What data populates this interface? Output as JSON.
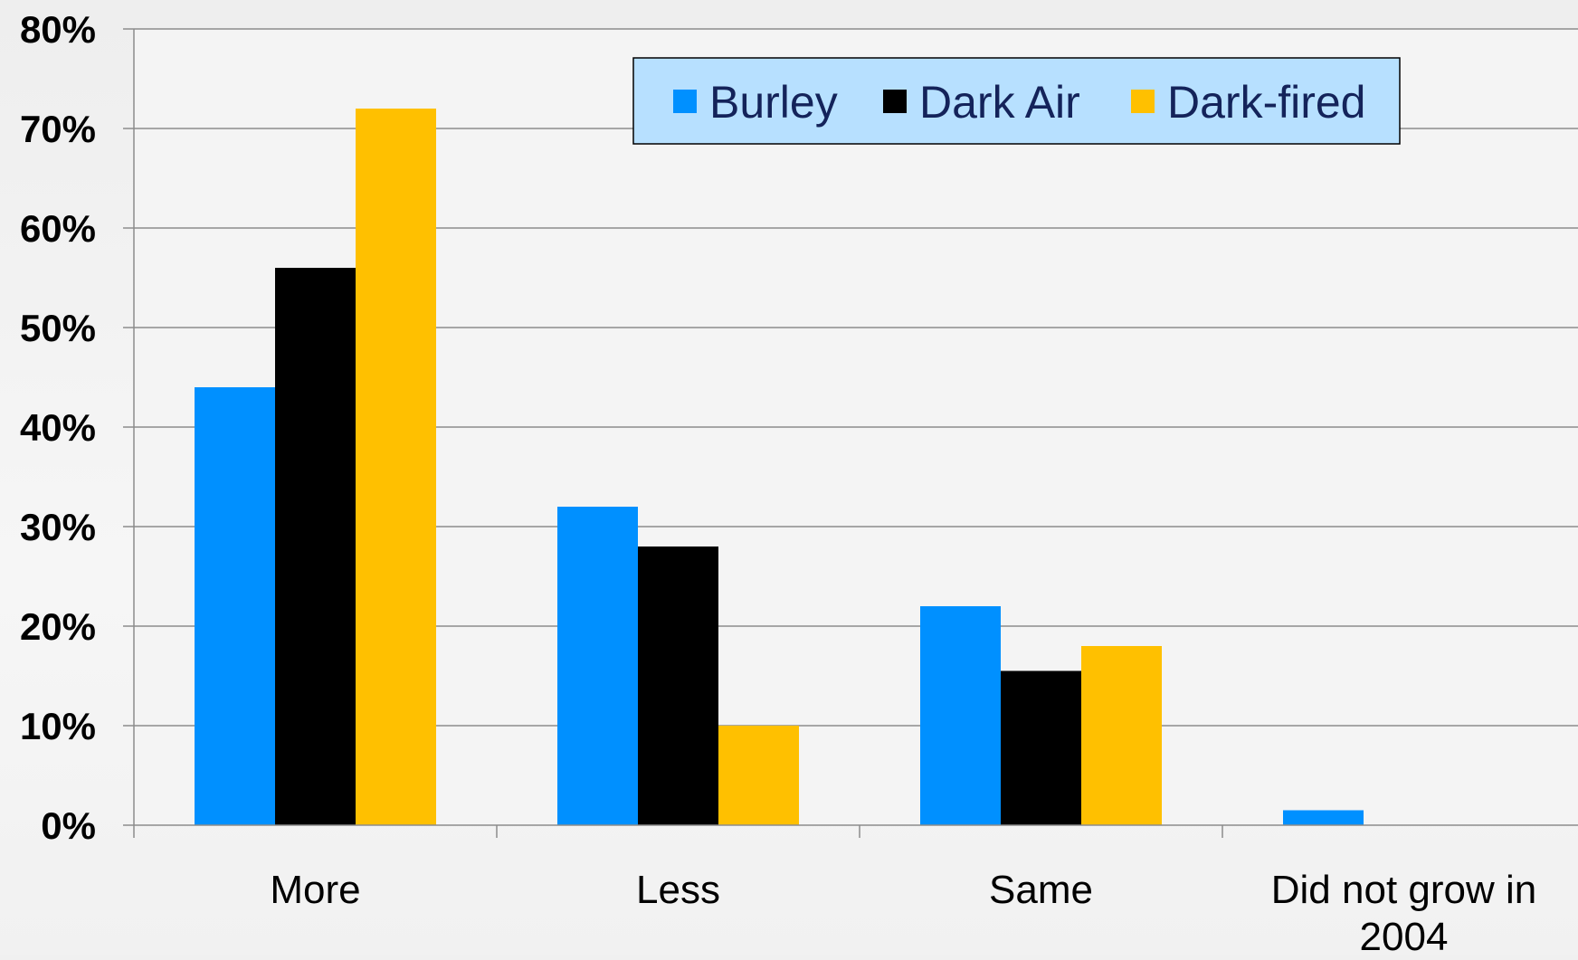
{
  "chart_data": {
    "type": "bar",
    "title": "",
    "xlabel": "",
    "ylabel": "",
    "categories": [
      "More",
      "Less",
      "Same",
      "Did not grow in 2004"
    ],
    "category_lines": [
      [
        "More"
      ],
      [
        "Less"
      ],
      [
        "Same"
      ],
      [
        "Did not grow in",
        "2004"
      ]
    ],
    "series": [
      {
        "name": "Burley",
        "color": "#0090ff",
        "values": [
          44,
          32,
          22,
          1.5
        ]
      },
      {
        "name": "Dark Air",
        "color": "#000000",
        "values": [
          56,
          28,
          15.5,
          0
        ]
      },
      {
        "name": "Dark-fired",
        "color": "#ffc000",
        "values": [
          72,
          10,
          18,
          0
        ]
      }
    ],
    "ylim": [
      0,
      80
    ],
    "yticks": [
      0,
      10,
      20,
      30,
      40,
      50,
      60,
      70,
      80
    ],
    "ytick_labels": [
      "0%",
      "10%",
      "20%",
      "30%",
      "40%",
      "50%",
      "60%",
      "70%",
      "80%"
    ],
    "grid": true,
    "legend": {
      "position": "top-center",
      "background": "#b7e0ff"
    }
  }
}
